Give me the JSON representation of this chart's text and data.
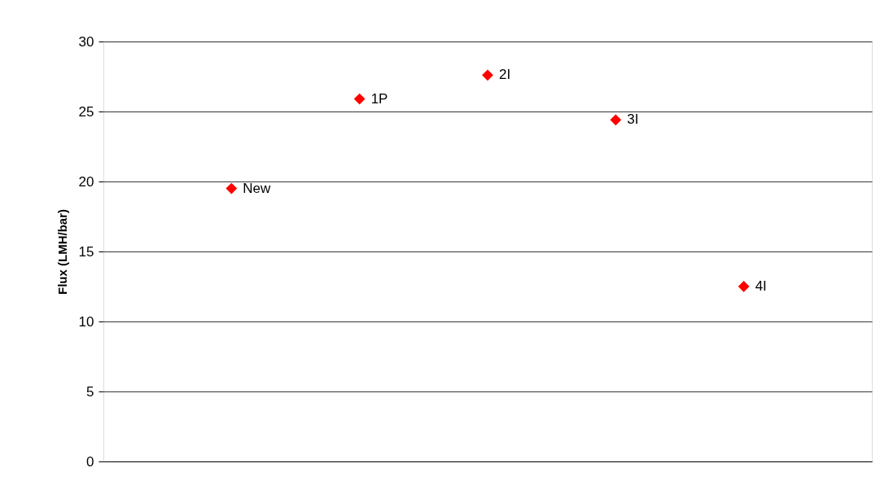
{
  "chart_data": {
    "type": "scatter",
    "ylabel": "Flux (LMH/bar)",
    "categories": [
      null,
      null,
      null,
      null,
      null
    ],
    "series": [
      {
        "color": "#ff0000",
        "values": [
          19.5,
          25.9,
          27.6,
          24.4,
          12.5
        ]
      }
    ],
    "ylim": [
      0,
      30
    ],
    "yticks": [
      0,
      5,
      10,
      15,
      20,
      25,
      30
    ],
    "grid": "y",
    "marker": "diamond",
    "tick_labels": "y",
    "annotations": [
      "New",
      "1P",
      "2I",
      "3I",
      "4I"
    ]
  }
}
